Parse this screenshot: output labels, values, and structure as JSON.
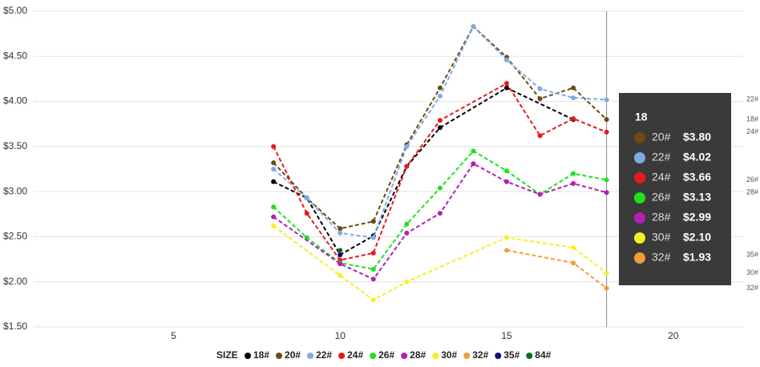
{
  "chart_data": {
    "type": "line",
    "xlim": [
      0.8,
      22.1
    ],
    "xticks": [
      5,
      10,
      15,
      20
    ],
    "ylim": [
      1.5,
      5
    ],
    "yticks": [
      {
        "value": 1.5,
        "label": "$1.50"
      },
      {
        "value": 2,
        "label": "$2.00"
      },
      {
        "value": 2.5,
        "label": "$2.50"
      },
      {
        "value": 3,
        "label": "$3.00"
      },
      {
        "value": 3.5,
        "label": "$3.50"
      },
      {
        "value": 4,
        "label": "$4.00"
      },
      {
        "value": 4.5,
        "label": "$4.50"
      },
      {
        "value": 5,
        "label": "$5.00"
      }
    ],
    "grid": true,
    "legend_title": "SIZE",
    "hover_x": 18,
    "series": [
      {
        "name": "18#",
        "color": "#000000",
        "x": [
          8,
          9,
          10,
          11,
          12,
          13,
          15,
          17
        ],
        "values": [
          3.11,
          2.93,
          2.3,
          2.51,
          3.28,
          3.71,
          4.15,
          3.8
        ]
      },
      {
        "name": "20#",
        "color": "#6b4b0f",
        "x": [
          8,
          9,
          10,
          11,
          12,
          13,
          14,
          15,
          16,
          17,
          18
        ],
        "values": [
          3.32,
          2.93,
          2.59,
          2.67,
          3.52,
          4.15,
          4.83,
          4.49,
          4.03,
          4.15,
          3.8
        ]
      },
      {
        "name": "22#",
        "color": "#7fa9e8",
        "x": [
          8,
          9,
          10,
          11,
          12,
          13,
          14,
          15,
          16,
          17,
          18
        ],
        "values": [
          3.25,
          2.93,
          2.54,
          2.49,
          3.5,
          4.06,
          4.83,
          4.46,
          4.14,
          4.04,
          4.02
        ]
      },
      {
        "name": "24#",
        "color": "#e8191c",
        "x": [
          8,
          9,
          10,
          11,
          12,
          13,
          15,
          16,
          17,
          18
        ],
        "values": [
          3.5,
          2.76,
          2.24,
          2.32,
          3.28,
          3.79,
          4.2,
          3.62,
          3.81,
          3.66
        ]
      },
      {
        "name": "26#",
        "color": "#1fe21f",
        "x": [
          8,
          9,
          10,
          11,
          12,
          13,
          14,
          15,
          16,
          17,
          18
        ],
        "values": [
          2.83,
          2.49,
          2.21,
          2.14,
          2.64,
          3.04,
          3.45,
          3.23,
          2.97,
          3.2,
          3.13
        ]
      },
      {
        "name": "28#",
        "color": "#b31eb3",
        "x": [
          8,
          10,
          11,
          12,
          13,
          14,
          15,
          16,
          17,
          18
        ],
        "values": [
          2.72,
          2.2,
          2.03,
          2.54,
          2.76,
          3.31,
          3.11,
          2.97,
          3.09,
          2.99
        ]
      },
      {
        "name": "30#",
        "color": "#f6f024",
        "x": [
          8,
          10,
          11,
          12,
          15,
          17,
          18
        ],
        "values": [
          2.62,
          2.07,
          1.8,
          2.0,
          2.49,
          2.38,
          2.1
        ]
      },
      {
        "name": "32#",
        "color": "#f39c3b",
        "x": [
          15,
          17,
          18
        ],
        "values": [
          2.35,
          2.21,
          1.93
        ]
      },
      {
        "name": "35#",
        "color": "#0b0b8a",
        "x": [
          10
        ],
        "values": [
          2.3
        ]
      },
      {
        "name": "84#",
        "color": "#0f6b1f",
        "x": [
          10
        ],
        "values": [
          2.35
        ]
      }
    ],
    "end_labels": [
      "22#",
      "18#",
      "24#",
      "26#",
      "28#",
      "35#",
      "30#",
      "32#"
    ],
    "tooltip": {
      "title": "18",
      "names": [
        "20#",
        "22#",
        "24#",
        "26#",
        "28#",
        "30#",
        "32#"
      ],
      "value_labels": [
        "$3.80",
        "$4.02",
        "$3.66",
        "$3.13",
        "$2.99",
        "$2.10",
        "$1.93"
      ]
    }
  }
}
